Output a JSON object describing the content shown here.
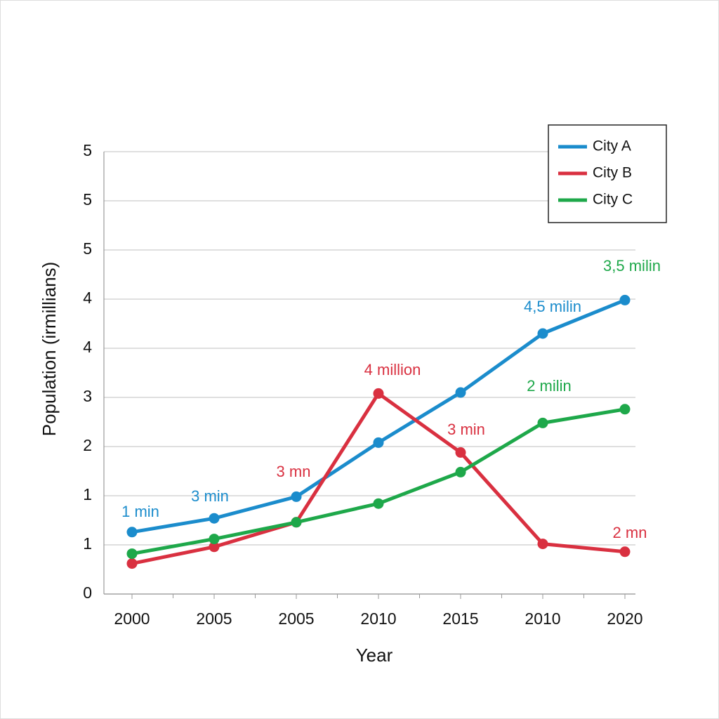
{
  "chart_data": {
    "type": "line",
    "x_label": "Year",
    "y_label": "Population (irmillians)",
    "categories": [
      "2000",
      "2005",
      "2005",
      "2010",
      "2015",
      "2010",
      "2020"
    ],
    "series": [
      {
        "name": "City A",
        "color": "#1b8ccc",
        "values": [
          0.63,
          0.77,
          0.99,
          1.54,
          2.05,
          2.65,
          2.99
        ]
      },
      {
        "name": "City B",
        "color": "#d93040",
        "values": [
          0.31,
          0.48,
          0.73,
          2.04,
          1.44,
          0.51,
          0.43
        ]
      },
      {
        "name": "City C",
        "color": "#1ea84a",
        "values": [
          0.41,
          0.56,
          0.73,
          0.92,
          1.24,
          1.74,
          1.88
        ]
      }
    ],
    "annotations": [
      {
        "text": "1 min",
        "color": "#1b8ccc"
      },
      {
        "text": "3 min",
        "color": "#1b8ccc"
      },
      {
        "text": "3 mn",
        "color": "#d93040"
      },
      {
        "text": "4 million",
        "color": "#d93040"
      },
      {
        "text": "3 min",
        "color": "#d93040"
      },
      {
        "text": "4,5 milin",
        "color": "#1b8ccc"
      },
      {
        "text": "2 milin",
        "color": "#1ea84a"
      },
      {
        "text": "3,5 milin",
        "color": "#1ea84a"
      },
      {
        "text": "2 mn",
        "color": "#d93040"
      }
    ],
    "ylim": [
      0,
      4.5
    ],
    "yticks": [
      0,
      {
        "value": 0.5,
        "label": "1"
      },
      {
        "value": 1,
        "label": "1"
      },
      {
        "value": 1.5,
        "label": "2"
      },
      {
        "value": 2,
        "label": "3"
      },
      {
        "value": 2.5,
        "label": "4"
      },
      {
        "value": 3,
        "label": "4"
      },
      {
        "value": 3.5,
        "label": "5"
      },
      {
        "value": 4,
        "label": "5"
      },
      {
        "value": 4.5,
        "label": "5"
      }
    ],
    "grid": true,
    "legend": "upper right"
  }
}
